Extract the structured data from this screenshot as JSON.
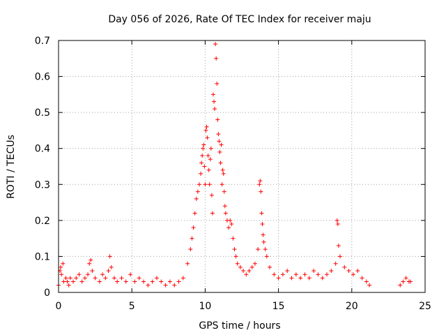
{
  "chart_data": {
    "type": "scatter",
    "title": "Day 056 of 2026, Rate Of TEC Index for receiver maju",
    "xlabel": "GPS time / hours",
    "ylabel": "ROTI / TECUs",
    "xlim": [
      0,
      25
    ],
    "ylim": [
      0,
      0.7
    ],
    "x_ticks": [
      "0",
      "5",
      "10",
      "15",
      "20",
      "25"
    ],
    "y_ticks": [
      "0",
      "0.1",
      "0.2",
      "0.3",
      "0.4",
      "0.5",
      "0.6",
      "0.7"
    ],
    "grid": true,
    "marker": "plus",
    "color": "#ff0000",
    "series": [
      {
        "x": [
          0.0,
          0.1,
          0.15,
          0.2,
          0.3,
          0.35,
          0.5,
          0.6,
          0.7,
          0.8,
          1.0,
          1.2,
          1.4,
          1.6,
          1.8,
          2.0,
          2.1,
          2.2,
          2.3,
          2.5,
          2.8,
          3.0,
          3.2,
          3.4,
          3.5,
          3.6,
          3.8,
          4.0,
          4.3,
          4.6,
          4.9,
          5.2,
          5.5,
          5.8,
          6.1,
          6.4,
          6.7,
          7.0,
          7.3,
          7.6,
          7.9,
          8.2,
          8.5,
          8.8,
          9.0,
          9.1,
          9.2,
          9.3,
          9.4,
          9.5,
          9.6,
          9.7,
          9.75,
          9.8,
          9.85,
          9.9,
          9.95,
          10.0,
          10.05,
          10.1,
          10.15,
          10.2,
          10.25,
          10.3,
          10.35,
          10.4,
          10.45,
          10.5,
          10.55,
          10.6,
          10.65,
          10.7,
          10.75,
          10.8,
          10.85,
          10.9,
          10.95,
          11.0,
          11.05,
          11.1,
          11.15,
          11.2,
          11.25,
          11.3,
          11.35,
          11.4,
          11.5,
          11.6,
          11.7,
          11.8,
          11.9,
          12.0,
          12.1,
          12.2,
          12.4,
          12.6,
          12.8,
          13.0,
          13.2,
          13.4,
          13.6,
          13.7,
          13.75,
          13.8,
          13.85,
          13.9,
          13.95,
          14.0,
          14.1,
          14.2,
          14.4,
          14.7,
          15.0,
          15.3,
          15.6,
          15.9,
          16.2,
          16.5,
          16.8,
          17.1,
          17.4,
          17.7,
          18.0,
          18.3,
          18.6,
          18.9,
          19.0,
          19.05,
          19.1,
          19.2,
          19.5,
          19.8,
          20.1,
          20.4,
          20.7,
          21.0,
          21.2,
          23.3,
          23.5,
          23.7,
          23.9,
          24.0
        ],
        "y": [
          0.02,
          0.06,
          0.07,
          0.05,
          0.08,
          0.03,
          0.04,
          0.03,
          0.02,
          0.04,
          0.03,
          0.04,
          0.05,
          0.03,
          0.04,
          0.05,
          0.08,
          0.09,
          0.06,
          0.04,
          0.03,
          0.05,
          0.04,
          0.06,
          0.1,
          0.07,
          0.04,
          0.03,
          0.04,
          0.03,
          0.05,
          0.03,
          0.04,
          0.03,
          0.02,
          0.03,
          0.04,
          0.03,
          0.02,
          0.03,
          0.02,
          0.03,
          0.04,
          0.08,
          0.12,
          0.15,
          0.18,
          0.22,
          0.26,
          0.28,
          0.3,
          0.33,
          0.36,
          0.38,
          0.4,
          0.41,
          0.35,
          0.3,
          0.45,
          0.46,
          0.43,
          0.38,
          0.34,
          0.3,
          0.37,
          0.4,
          0.27,
          0.22,
          0.55,
          0.53,
          0.51,
          0.69,
          0.65,
          0.58,
          0.48,
          0.44,
          0.42,
          0.39,
          0.36,
          0.41,
          0.3,
          0.34,
          0.33,
          0.28,
          0.24,
          0.22,
          0.2,
          0.18,
          0.2,
          0.19,
          0.15,
          0.12,
          0.1,
          0.08,
          0.07,
          0.06,
          0.05,
          0.06,
          0.07,
          0.08,
          0.12,
          0.3,
          0.31,
          0.28,
          0.22,
          0.19,
          0.16,
          0.14,
          0.12,
          0.1,
          0.07,
          0.05,
          0.04,
          0.05,
          0.06,
          0.04,
          0.05,
          0.04,
          0.05,
          0.04,
          0.06,
          0.05,
          0.04,
          0.05,
          0.06,
          0.08,
          0.2,
          0.19,
          0.13,
          0.1,
          0.07,
          0.06,
          0.05,
          0.06,
          0.04,
          0.03,
          0.02,
          0.02,
          0.03,
          0.04,
          0.03,
          0.03
        ]
      }
    ]
  }
}
